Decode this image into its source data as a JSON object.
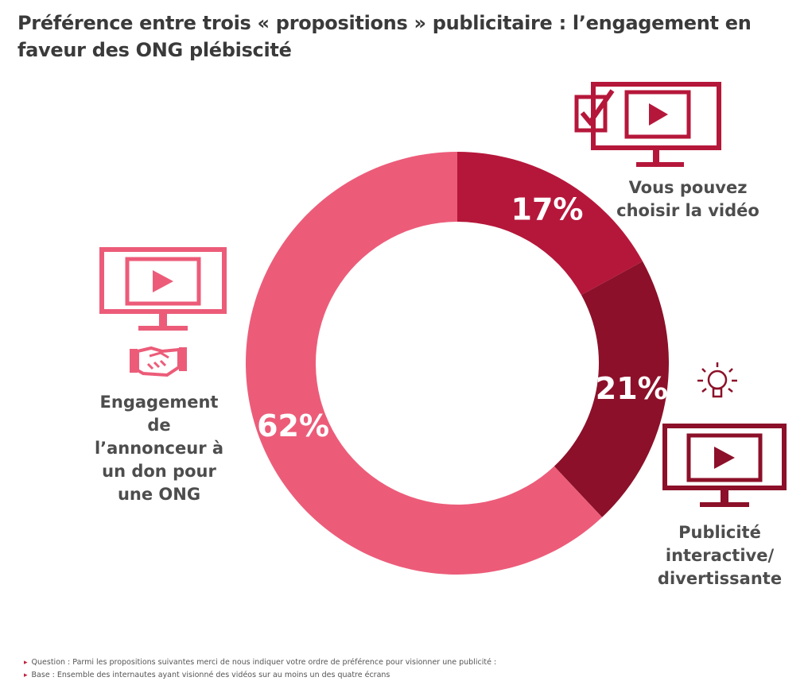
{
  "title": "Préférence entre trois « propositions » publicitaire : l’engagement en faveur des ONG plébiscité",
  "chart_data": {
    "type": "pie",
    "variant": "donut",
    "title": "Préférence entre trois « propositions » publicitaire : l’engagement en faveur des ONG plébiscité",
    "categories": [
      "Vous pouvez choisir la vidéo",
      "Publicité interactive/ divertissante",
      "Engagement de l’annonceur à un don pour une ONG"
    ],
    "values": [
      17,
      21,
      62
    ],
    "value_labels": [
      "17%",
      "21%",
      "62%"
    ],
    "colors": [
      "#b5173a",
      "#8c1029",
      "#ec5c79"
    ]
  },
  "labels": {
    "choose": [
      "Vous pouvez",
      "choisir la vidéo"
    ],
    "interactive": [
      "Publicité",
      "interactive/",
      "divertissante"
    ],
    "engagement": [
      "Engagement",
      "de",
      "l’annonceur à",
      "un don pour",
      "une ONG"
    ]
  },
  "icons": {
    "choose": "monitor-play-with-checkbox-icon",
    "interactive_bulb": "lightbulb-icon",
    "interactive": "monitor-play-icon",
    "engagement": "monitor-play-icon",
    "engagement_hand": "handshake-icon"
  },
  "footnotes": [
    "Question : Parmi les propositions suivantes merci de nous indiquer votre ordre de préférence pour visionner une publicité :",
    "Base : Ensemble des internautes ayant visionné des vidéos sur au moins un des quatre écrans"
  ]
}
